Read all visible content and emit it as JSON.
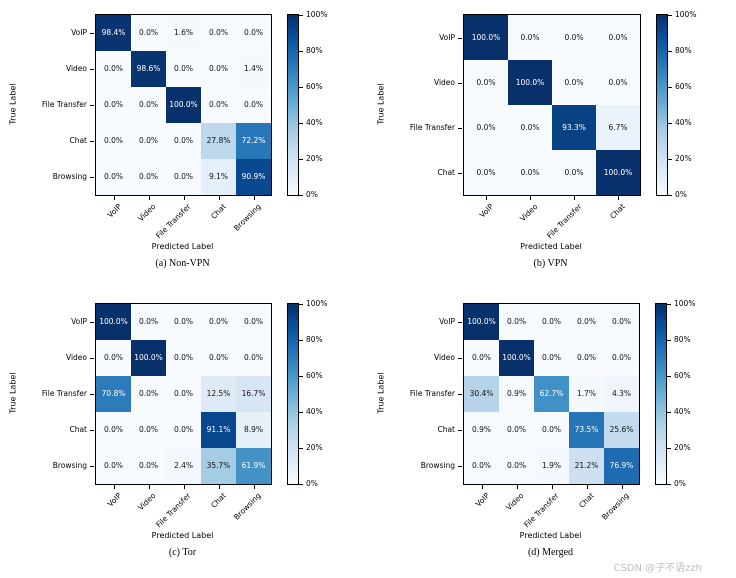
{
  "figure": {
    "watermark": "CSDN @子不语zzh"
  },
  "colors": {
    "colormap": "Blues",
    "cmap_low": "#f7fbff",
    "cmap_high": "#08306b",
    "cell_text_dark": "#111111",
    "cell_text_light": "#ffffff"
  },
  "chart_data": [
    {
      "type": "heatmap",
      "caption": "(a) Non-VPN",
      "xlabel": "Predicted Label",
      "ylabel": "True Label",
      "x_categories": [
        "VoIP",
        "Video",
        "File Transfer",
        "Chat",
        "Browsing"
      ],
      "y_categories": [
        "VoIP",
        "Video",
        "File Transfer",
        "Chat",
        "Browsing"
      ],
      "values": [
        [
          98.4,
          0.0,
          1.6,
          0.0,
          0.0
        ],
        [
          0.0,
          98.6,
          0.0,
          0.0,
          1.4
        ],
        [
          0.0,
          0.0,
          100.0,
          0.0,
          0.0
        ],
        [
          0.0,
          0.0,
          0.0,
          27.8,
          72.2
        ],
        [
          0.0,
          0.0,
          0.0,
          9.1,
          90.9
        ]
      ],
      "value_suffix": "%",
      "vmin": 0,
      "vmax": 100,
      "colormap": "Blues",
      "colorbar_ticks": [
        "0%",
        "20%",
        "40%",
        "60%",
        "80%",
        "100%"
      ]
    },
    {
      "type": "heatmap",
      "caption": "(b) VPN",
      "xlabel": "Predicted Label",
      "ylabel": "True Label",
      "x_categories": [
        "VoIP",
        "Video",
        "File Transfer",
        "Chat"
      ],
      "y_categories": [
        "VoIP",
        "Video",
        "File Transfer",
        "Chat"
      ],
      "values": [
        [
          100.0,
          0.0,
          0.0,
          0.0
        ],
        [
          0.0,
          100.0,
          0.0,
          0.0
        ],
        [
          0.0,
          0.0,
          93.3,
          6.7
        ],
        [
          0.0,
          0.0,
          0.0,
          100.0
        ]
      ],
      "value_suffix": "%",
      "vmin": 0,
      "vmax": 100,
      "colormap": "Blues",
      "colorbar_ticks": [
        "0%",
        "20%",
        "40%",
        "60%",
        "80%",
        "100%"
      ]
    },
    {
      "type": "heatmap",
      "caption": "(c) Tor",
      "xlabel": "Predicted Label",
      "ylabel": "True Label",
      "x_categories": [
        "VoIP",
        "Video",
        "File Transfer",
        "Chat",
        "Browsing"
      ],
      "y_categories": [
        "VoIP",
        "Video",
        "File Transfer",
        "Chat",
        "Browsing"
      ],
      "values": [
        [
          100.0,
          0.0,
          0.0,
          0.0,
          0.0
        ],
        [
          0.0,
          100.0,
          0.0,
          0.0,
          0.0
        ],
        [
          70.8,
          0.0,
          0.0,
          12.5,
          16.7
        ],
        [
          0.0,
          0.0,
          0.0,
          91.1,
          8.9
        ],
        [
          0.0,
          0.0,
          2.4,
          35.7,
          61.9
        ]
      ],
      "value_suffix": "%",
      "vmin": 0,
      "vmax": 100,
      "colormap": "Blues",
      "colorbar_ticks": [
        "0%",
        "20%",
        "40%",
        "60%",
        "80%",
        "100%"
      ]
    },
    {
      "type": "heatmap",
      "caption": "(d) Merged",
      "xlabel": "Predicted Label",
      "ylabel": "True Label",
      "x_categories": [
        "VoIP",
        "Video",
        "File Transfer",
        "Chat",
        "Browsing"
      ],
      "y_categories": [
        "VoIP",
        "Video",
        "File Transfer",
        "Chat",
        "Browsing"
      ],
      "values": [
        [
          100.0,
          0.0,
          0.0,
          0.0,
          0.0
        ],
        [
          0.0,
          100.0,
          0.0,
          0.0,
          0.0
        ],
        [
          30.4,
          0.9,
          62.7,
          1.7,
          4.3
        ],
        [
          0.9,
          0.0,
          0.0,
          73.5,
          25.6
        ],
        [
          0.0,
          0.0,
          1.9,
          21.2,
          76.9
        ]
      ],
      "value_suffix": "%",
      "vmin": 0,
      "vmax": 100,
      "colormap": "Blues",
      "colorbar_ticks": [
        "0%",
        "20%",
        "40%",
        "60%",
        "80%",
        "100%"
      ]
    }
  ]
}
